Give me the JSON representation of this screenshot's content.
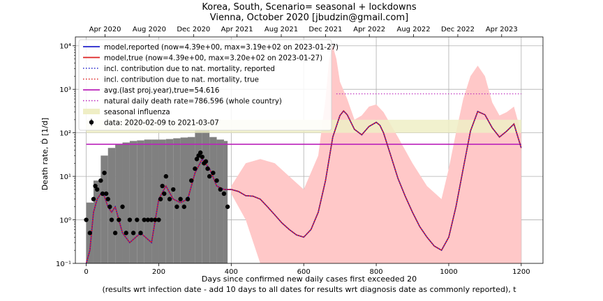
{
  "chart_data": {
    "type": "line",
    "title_line1": "Korea, South, Scenario= seasonal + lockdowns",
    "title_line2": "Vienna, October 2020 [jbudzin@gmail.com]",
    "xlabel_line1": "Days since confirmed new daily cases first exceeded 20",
    "xlabel_line2": "(results wrt infection date - add 10 days to all dates for results wrt diagnosis date as commonly reported), t",
    "ylabel": "Death rate, Ḋ [1/d]",
    "xlim": [
      -30,
      1260
    ],
    "ylim": [
      0.1,
      16000
    ],
    "yscale": "log",
    "grid": true,
    "legend_position": "top-left",
    "x_ticks": [
      0,
      200,
      400,
      600,
      800,
      1000,
      1200
    ],
    "x_tick_labels": [
      "0",
      "200",
      "400",
      "600",
      "800",
      "1000",
      "1200"
    ],
    "y_ticks": [
      0.1,
      1,
      10,
      100,
      1000,
      10000
    ],
    "y_tick_labels": [
      "10⁻¹",
      "10⁰",
      "10¹",
      "10²",
      "10³",
      "10⁴"
    ],
    "top_axis": {
      "labels": [
        "Apr 2020",
        "Aug 2020",
        "Dec 2020",
        "Apr 2021",
        "Aug 2021",
        "Dec 2021",
        "Apr 2022",
        "Aug 2022",
        "Dec 2022",
        "Apr 2023"
      ],
      "x": [
        52,
        174,
        296,
        416,
        538,
        660,
        781,
        903,
        1025,
        1146
      ]
    },
    "legend": [
      {
        "label": "model,reported (now=4.39e+00, max=3.19e+02 on 2023-01-27)",
        "color": "#2222cc",
        "style": "solid"
      },
      {
        "label": "model,true (now=4.39e+00, max=3.20e+02 on 2023-01-27)",
        "color": "#dd2222",
        "style": "solid"
      },
      {
        "label": "incl. contribution due to nat. mortality, reported",
        "color": "#2222cc",
        "style": "dotted"
      },
      {
        "label": "incl. contribution due to nat. mortality, true",
        "color": "#dd2222",
        "style": "dotted"
      },
      {
        "label": "avg.(last proj.year),true=54.616",
        "color": "#bb22bb",
        "style": "solid"
      },
      {
        "label": "natural daily death rate=786.596 (whole country)",
        "color": "#bb22bb",
        "style": "dotted"
      },
      {
        "label": "seasonal influenza",
        "color": "#efeec5",
        "style": "patch"
      },
      {
        "label": "data: 2020-02-09 to 2021-03-07",
        "color": "#000000",
        "style": "marker"
      }
    ],
    "colors": {
      "reported": "#2222cc",
      "true": "#dd2222",
      "avg": "#bb22bb",
      "influenza": "#efeec5",
      "uncertainty_band": "#ffc8c8",
      "data_bars": "#808080",
      "data_points": "#000000"
    },
    "series": [
      {
        "name": "model,true",
        "x": [
          0,
          10,
          20,
          30,
          40,
          50,
          60,
          70,
          80,
          90,
          100,
          120,
          150,
          180,
          200,
          220,
          240,
          260,
          280,
          300,
          320,
          340,
          360,
          380,
          400,
          420,
          440,
          460,
          480,
          500,
          520,
          540,
          560,
          580,
          600,
          620,
          640,
          660,
          680,
          700,
          710,
          720,
          740,
          760,
          780,
          800,
          810,
          820,
          840,
          860,
          880,
          900,
          920,
          940,
          960,
          980,
          1000,
          1020,
          1040,
          1060,
          1080,
          1100,
          1120,
          1140,
          1160,
          1180,
          1200
        ],
        "values": [
          0.1,
          0.2,
          1.5,
          3,
          4,
          3.5,
          2,
          1.5,
          2,
          1,
          0.5,
          0.3,
          0.5,
          0.3,
          3,
          6,
          3,
          2.5,
          3,
          12,
          25,
          15,
          6,
          5,
          5,
          4.5,
          3.6,
          3.5,
          3.0,
          2.0,
          1.3,
          0.85,
          0.6,
          0.45,
          0.4,
          0.6,
          1.5,
          8,
          80,
          250,
          320,
          260,
          120,
          90,
          140,
          175,
          150,
          100,
          30,
          9,
          3.5,
          1.5,
          0.7,
          0.4,
          0.25,
          0.2,
          0.4,
          2,
          15,
          110,
          310,
          260,
          130,
          80,
          110,
          160,
          45
        ]
      },
      {
        "name": "model,reported",
        "x": [
          0,
          10,
          20,
          30,
          40,
          50,
          60,
          70,
          80,
          90,
          100,
          120,
          150,
          180,
          200,
          220,
          240,
          260,
          280,
          300,
          320,
          340,
          360,
          380,
          400,
          420,
          440,
          460,
          480,
          500,
          520,
          540,
          560,
          580,
          600,
          620,
          640,
          660,
          680,
          700,
          710,
          720,
          740,
          760,
          780,
          800,
          810,
          820,
          840,
          860,
          880,
          900,
          920,
          940,
          960,
          980,
          1000,
          1020,
          1040,
          1060,
          1080,
          1100,
          1120,
          1140,
          1160,
          1180,
          1200
        ],
        "values": [
          0.1,
          0.2,
          1.5,
          3,
          4,
          3.5,
          2,
          1.5,
          2,
          1,
          0.5,
          0.3,
          0.5,
          0.3,
          3,
          6,
          3,
          2.5,
          3,
          12,
          25,
          15,
          6,
          5,
          5,
          4.5,
          3.6,
          3.5,
          3.0,
          2.0,
          1.3,
          0.85,
          0.6,
          0.45,
          0.4,
          0.6,
          1.5,
          8,
          80,
          250,
          319,
          260,
          120,
          90,
          140,
          175,
          150,
          100,
          30,
          9,
          3.5,
          1.5,
          0.7,
          0.4,
          0.25,
          0.2,
          0.4,
          2,
          15,
          110,
          310,
          260,
          130,
          80,
          110,
          160,
          45
        ]
      },
      {
        "name": "avg.(last proj.year),true",
        "x": [
          0,
          1200
        ],
        "values": [
          54.616,
          54.616
        ]
      },
      {
        "name": "natural daily death rate",
        "x": [
          690,
          1200
        ],
        "values": [
          786.596,
          786.596
        ]
      },
      {
        "name": "uncertainty band",
        "x": [
          400,
          440,
          480,
          520,
          560,
          600,
          640,
          660,
          670,
          680,
          690,
          700,
          720,
          740,
          760,
          780,
          800,
          820,
          860,
          900,
          940,
          980,
          1000,
          1020,
          1040,
          1060,
          1080,
          1100,
          1120,
          1140,
          1160,
          1180,
          1200
        ],
        "upper": [
          6,
          20,
          25,
          20,
          10,
          5,
          30,
          600,
          5000,
          10000,
          5000,
          1500,
          600,
          200,
          250,
          400,
          450,
          300,
          80,
          20,
          6,
          3,
          15,
          100,
          600,
          2000,
          3500,
          2000,
          500,
          250,
          300,
          400,
          100
        ],
        "lower": [
          4,
          1,
          0.1,
          0.1,
          0.1,
          0.1,
          0.1,
          0.1,
          0.1,
          0.1,
          0.1,
          0.1,
          0.1,
          0.1,
          0.1,
          0.1,
          0.1,
          0.1,
          0.1,
          0.1,
          0.1,
          0.1,
          0.1,
          0.1,
          0.1,
          0.1,
          0.1,
          0.1,
          0.1,
          0.1,
          0.1,
          0.1,
          0.1
        ]
      },
      {
        "name": "seasonal influenza",
        "x": [
          0,
          1200
        ],
        "low": 100,
        "high": 200
      },
      {
        "name": "data: 2020-02-09 to 2021-03-07",
        "x": [
          0,
          10,
          20,
          25,
          30,
          40,
          45,
          50,
          55,
          60,
          65,
          70,
          80,
          90,
          100,
          110,
          120,
          130,
          140,
          150,
          160,
          170,
          180,
          190,
          200,
          205,
          210,
          215,
          220,
          230,
          240,
          250,
          260,
          270,
          280,
          290,
          300,
          305,
          310,
          315,
          320,
          325,
          330,
          335,
          340,
          350,
          360,
          370,
          380,
          390
        ],
        "values": [
          1,
          0.5,
          3,
          6,
          5,
          8,
          4,
          12,
          4,
          3,
          2,
          1,
          0.5,
          1,
          2,
          0.5,
          1,
          0.5,
          1,
          0.5,
          1,
          1,
          1,
          1,
          1,
          3,
          6,
          4,
          10,
          3,
          5,
          2,
          3,
          2,
          3,
          8,
          15,
          25,
          30,
          35,
          28,
          20,
          22,
          15,
          10,
          12,
          8,
          5,
          4,
          2
        ]
      },
      {
        "name": "data bars (cumulative)",
        "x": [
          0,
          20,
          40,
          60,
          80,
          100,
          120,
          140,
          160,
          180,
          200,
          220,
          240,
          260,
          280,
          300,
          320,
          340,
          360,
          380,
          390
        ],
        "values": [
          2.5,
          8,
          30,
          45,
          55,
          60,
          65,
          67,
          70,
          70,
          70,
          72,
          75,
          78,
          80,
          130,
          150,
          80,
          70,
          65,
          60
        ]
      }
    ]
  }
}
